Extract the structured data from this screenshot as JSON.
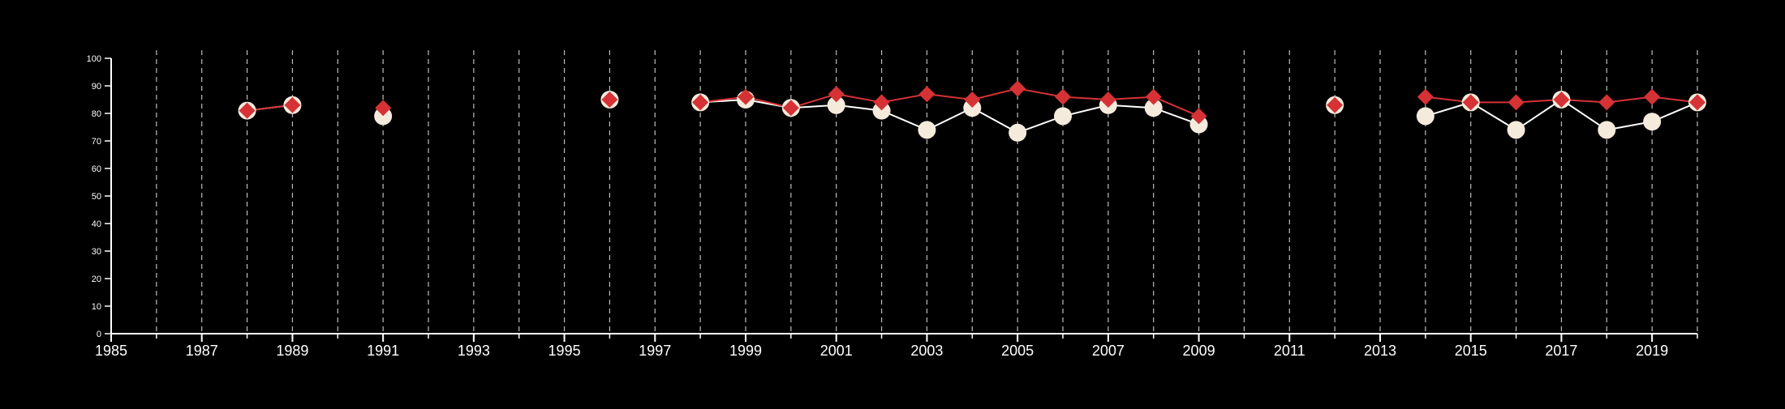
{
  "chart_data": {
    "type": "line",
    "title": "",
    "xlabel": "",
    "ylabel": "",
    "xlim": [
      1985,
      2020
    ],
    "ylim": [
      0,
      100
    ],
    "y_ticks": [
      0,
      10,
      20,
      30,
      40,
      50,
      60,
      70,
      80,
      90,
      100
    ],
    "x_ticks": [
      1985,
      1987,
      1989,
      1991,
      1993,
      1995,
      1997,
      1999,
      2001,
      2003,
      2005,
      2007,
      2009,
      2011,
      2013,
      2015,
      2017,
      2019
    ],
    "x_tick_labels": [
      "1985",
      "1987",
      "1989",
      "1991",
      "1993",
      "1995",
      "1997",
      "1999",
      "2001",
      "2003",
      "2005",
      "2007",
      "2009",
      "2011",
      "2013",
      "2015",
      "2017",
      "2019"
    ],
    "grid": "vertical dashed at every year",
    "background": "#000000",
    "series": [
      {
        "marker": "circle",
        "color": "#f5ebdc",
        "line_color": "#ffffff",
        "points": [
          {
            "x": 1988,
            "y": 81
          },
          {
            "x": 1989,
            "y": 83
          },
          {
            "x": 1991,
            "y": 79
          },
          {
            "x": 1996,
            "y": 85
          },
          {
            "x": 1998,
            "y": 84
          },
          {
            "x": 1999,
            "y": 85
          },
          {
            "x": 2000,
            "y": 82
          },
          {
            "x": 2001,
            "y": 83
          },
          {
            "x": 2002,
            "y": 81
          },
          {
            "x": 2003,
            "y": 74
          },
          {
            "x": 2004,
            "y": 82
          },
          {
            "x": 2005,
            "y": 73
          },
          {
            "x": 2006,
            "y": 79
          },
          {
            "x": 2007,
            "y": 83
          },
          {
            "x": 2008,
            "y": 82
          },
          {
            "x": 2009,
            "y": 76
          },
          {
            "x": 2012,
            "y": 83
          },
          {
            "x": 2014,
            "y": 79
          },
          {
            "x": 2015,
            "y": 84
          },
          {
            "x": 2016,
            "y": 74
          },
          {
            "x": 2017,
            "y": 85
          },
          {
            "x": 2018,
            "y": 74
          },
          {
            "x": 2019,
            "y": 77
          },
          {
            "x": 2020,
            "y": 84
          }
        ]
      },
      {
        "marker": "diamond",
        "color": "#d63236",
        "line_color": "#d63236",
        "points": [
          {
            "x": 1988,
            "y": 81
          },
          {
            "x": 1989,
            "y": 83
          },
          {
            "x": 1991,
            "y": 82
          },
          {
            "x": 1996,
            "y": 85
          },
          {
            "x": 1998,
            "y": 84
          },
          {
            "x": 1999,
            "y": 86
          },
          {
            "x": 2000,
            "y": 82
          },
          {
            "x": 2001,
            "y": 87
          },
          {
            "x": 2002,
            "y": 84
          },
          {
            "x": 2003,
            "y": 87
          },
          {
            "x": 2004,
            "y": 85
          },
          {
            "x": 2005,
            "y": 89
          },
          {
            "x": 2006,
            "y": 86
          },
          {
            "x": 2007,
            "y": 85
          },
          {
            "x": 2008,
            "y": 86
          },
          {
            "x": 2009,
            "y": 79
          },
          {
            "x": 2012,
            "y": 83
          },
          {
            "x": 2014,
            "y": 86
          },
          {
            "x": 2015,
            "y": 84
          },
          {
            "x": 2016,
            "y": 84
          },
          {
            "x": 2017,
            "y": 85
          },
          {
            "x": 2018,
            "y": 84
          },
          {
            "x": 2019,
            "y": 86
          },
          {
            "x": 2020,
            "y": 84
          }
        ]
      }
    ]
  }
}
